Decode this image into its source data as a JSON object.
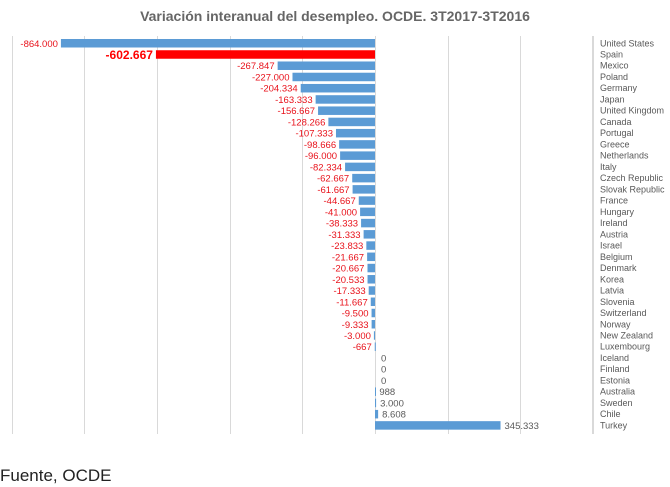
{
  "chart_data": {
    "type": "bar",
    "orientation": "horizontal",
    "title": "Variación interanual del desempleo. OCDE. 3T2017-3T2016",
    "xlabel": "",
    "ylabel": "",
    "xlim": [
      -1000000,
      600000
    ],
    "grid": true,
    "legend": "none",
    "highlight_category": "Spain",
    "colors": {
      "bar": "#5b9bd5",
      "highlight": "#ff0000",
      "negative_label": "#e8121b",
      "positive_label": "#595959",
      "grid": "#d9d9d9"
    },
    "categories": [
      "United States",
      "Spain",
      "Mexico",
      "Poland",
      "Germany",
      "Japan",
      "United Kingdom",
      "Canada",
      "Portugal",
      "Greece",
      "Netherlands",
      "Italy",
      "Czech Republic",
      "Slovak Republic",
      "France",
      "Hungary",
      "Ireland",
      "Austria",
      "Israel",
      "Belgium",
      "Denmark",
      "Korea",
      "Latvia",
      "Slovenia",
      "Switzerland",
      "Norway",
      "New Zealand",
      "Luxembourg",
      "Iceland",
      "Finland",
      "Estonia",
      "Australia",
      "Sweden",
      "Chile",
      "Turkey"
    ],
    "values": [
      -864000,
      -602667,
      -267847,
      -227000,
      -204334,
      -163333,
      -156667,
      -128266,
      -107333,
      -98666,
      -96000,
      -82334,
      -62667,
      -61667,
      -44667,
      -41000,
      -38333,
      -31333,
      -23833,
      -21667,
      -20667,
      -20533,
      -17333,
      -11667,
      -9500,
      -9333,
      -3000,
      -667,
      0,
      0,
      0,
      988,
      3000,
      8608,
      345333
    ],
    "data_labels": [
      "-864.000",
      "-602.667",
      "-267.847",
      "-227.000",
      "-204.334",
      "-163.333",
      "-156.667",
      "-128.266",
      "-107.333",
      "-98.666",
      "-96.000",
      "-82.334",
      "-62.667",
      "-61.667",
      "-44.667",
      "-41.000",
      "-38.333",
      "-31.333",
      "-23.833",
      "-21.667",
      "-20.667",
      "-20.533",
      "-17.333",
      "-11.667",
      "-9.500",
      "-9.333",
      "-3.000",
      "-667",
      "0",
      "0",
      "0",
      "988",
      "3.000",
      "8.608",
      "345.333"
    ]
  },
  "footer": {
    "source": "Fuente, OCDE"
  }
}
